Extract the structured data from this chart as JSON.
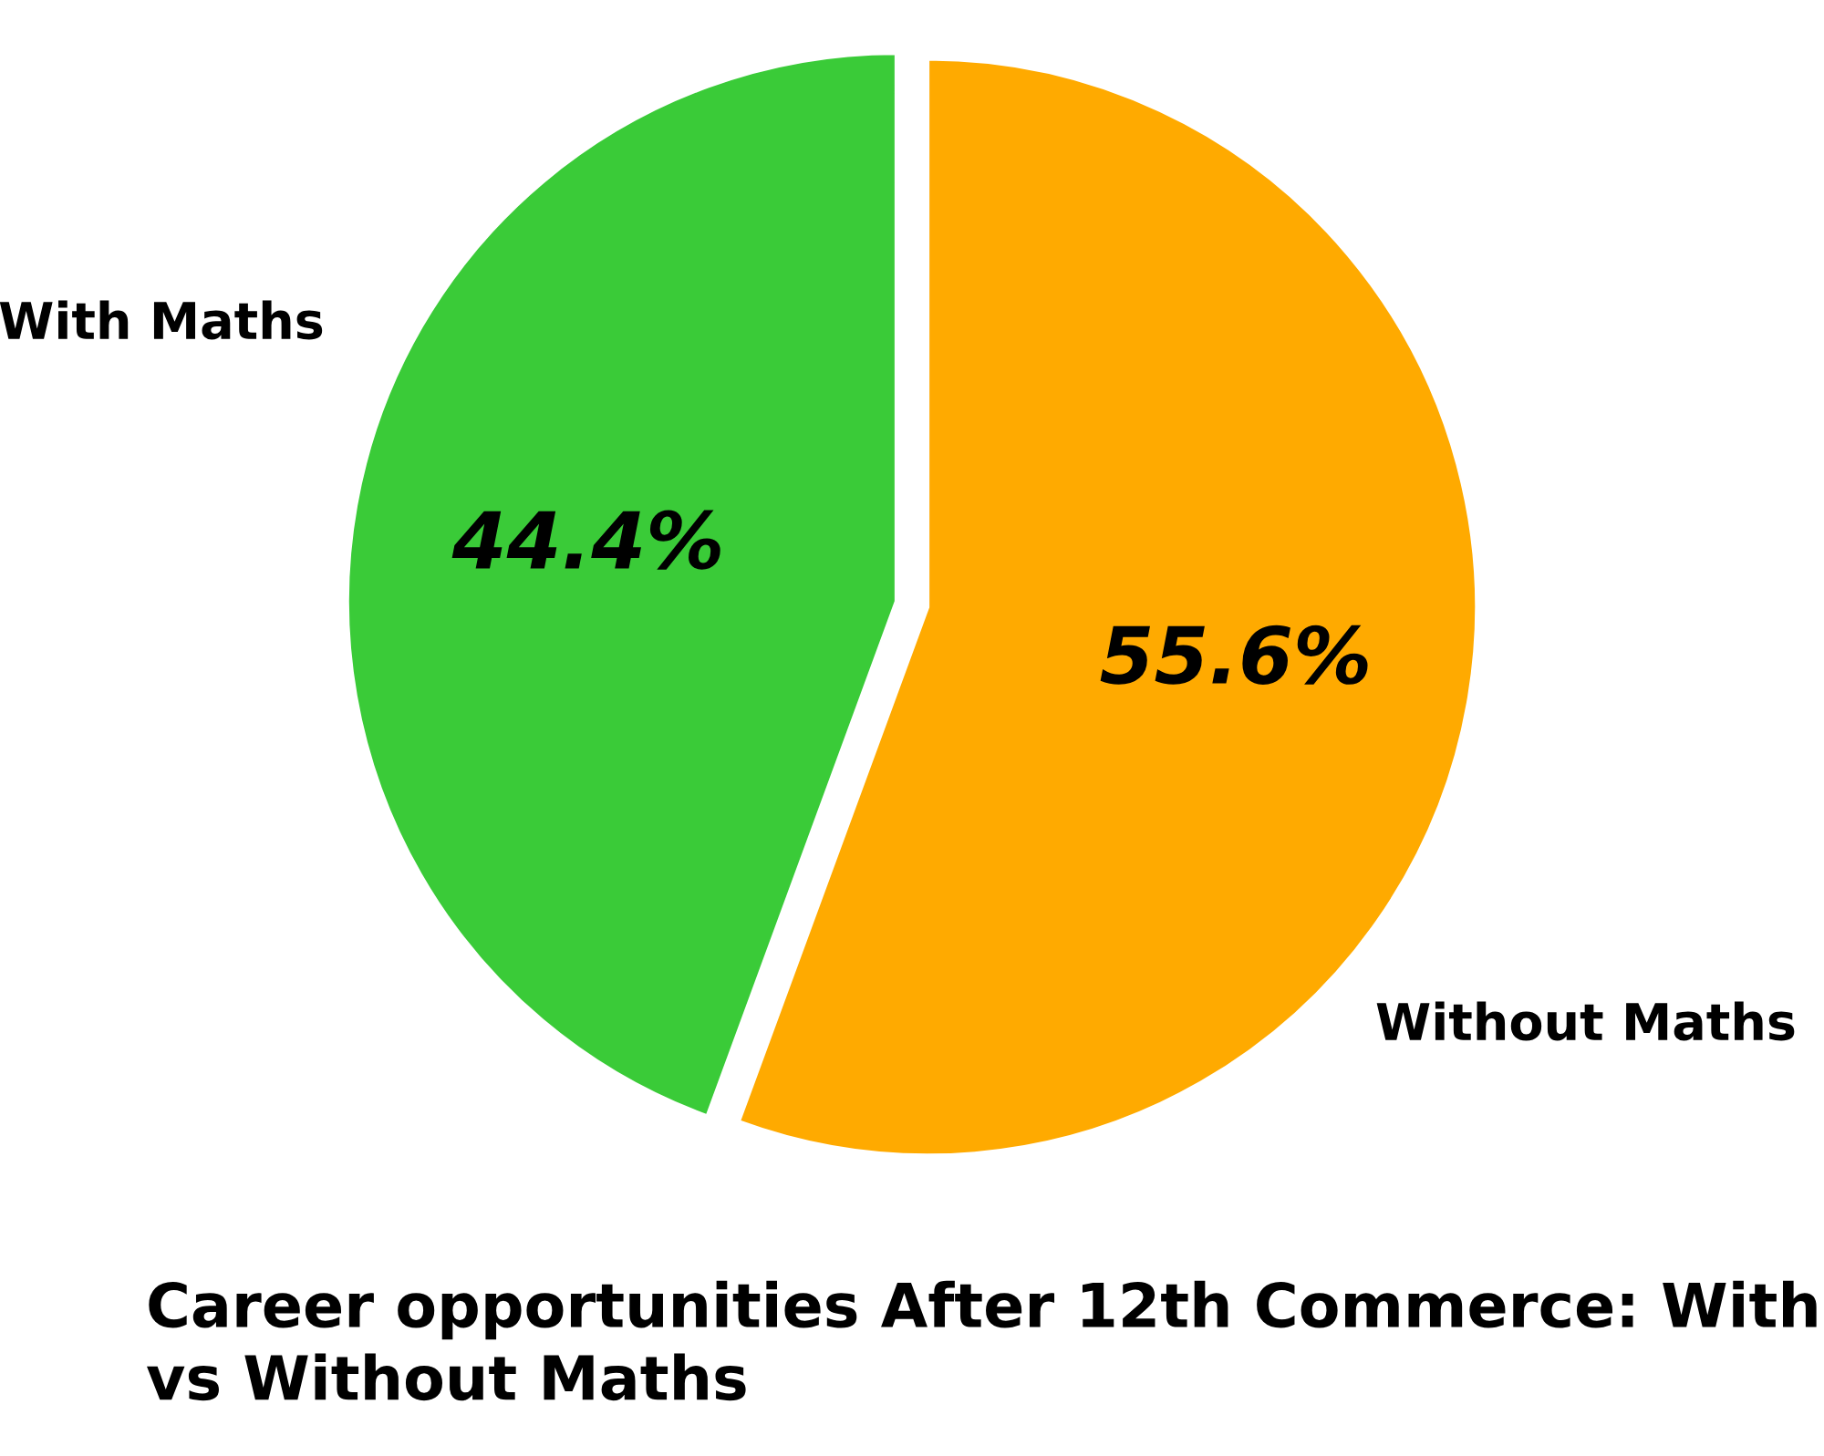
{
  "chart_data": {
    "type": "pie",
    "title": "Career opportunities After 12th Commerce: With vs Without Maths",
    "categories": [
      "With Maths",
      "Without Maths"
    ],
    "values": [
      44.4,
      55.6
    ],
    "value_labels": [
      "44.4%",
      "55.6%"
    ],
    "colors": [
      "#3acb38",
      "#ffaa00"
    ],
    "legend": false
  }
}
